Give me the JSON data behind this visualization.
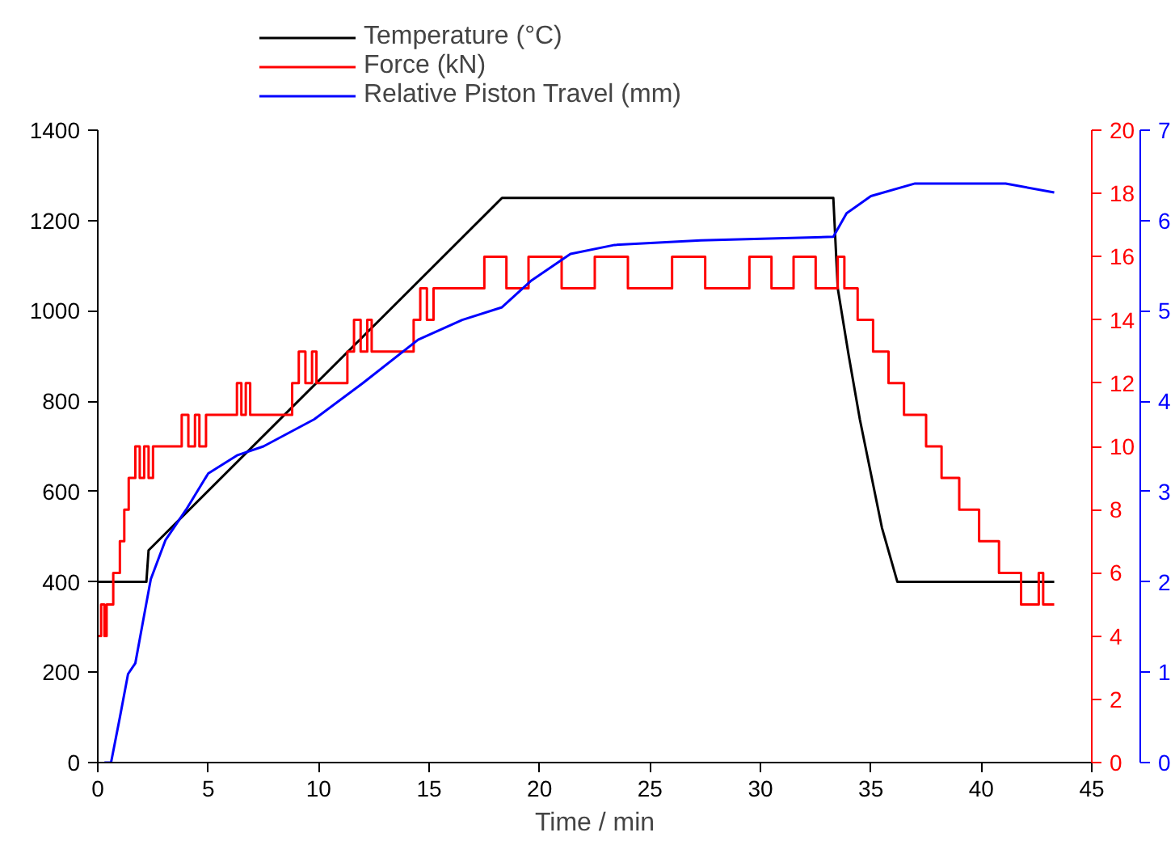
{
  "chart_data": {
    "type": "line",
    "xlabel": "Time / min",
    "xlim": [
      0,
      45
    ],
    "xticks": [
      0,
      5,
      10,
      15,
      20,
      25,
      30,
      35,
      40,
      45
    ],
    "ylim": [
      0,
      1400
    ],
    "yticks": [
      0,
      200,
      400,
      600,
      800,
      1000,
      1200,
      1400
    ],
    "y2lim": [
      0,
      20
    ],
    "y2ticks": [
      0,
      2,
      4,
      6,
      8,
      10,
      12,
      14,
      16,
      18,
      20
    ],
    "y3lim": [
      0,
      7
    ],
    "y3ticks": [
      0,
      1,
      2,
      3,
      4,
      5,
      6,
      7
    ],
    "legend": "top left",
    "grid": false,
    "series": [
      {
        "name": "Temperature (°C)",
        "color": "#000000",
        "type": "line",
        "x": [
          0,
          2.2,
          2.3,
          18.3,
          33.3,
          33.5,
          34,
          34.5,
          35,
          35.5,
          36.2,
          43.3
        ],
        "values": [
          400,
          400,
          470,
          1250,
          1250,
          1050,
          900,
          760,
          640,
          520,
          400,
          400
        ]
      },
      {
        "name": "Force (kN)",
        "color": "#ff0000",
        "type": "step",
        "axis": "y2",
        "x": [
          0,
          0.15,
          0.3,
          0.4,
          0.7,
          1.0,
          1.2,
          1.4,
          1.7,
          1.9,
          2.1,
          2.3,
          2.5,
          3.8,
          4.1,
          4.4,
          4.6,
          4.9,
          6.3,
          6.5,
          6.7,
          6.9,
          8.8,
          9.1,
          9.4,
          9.7,
          9.9,
          11.3,
          11.6,
          11.9,
          12.2,
          12.4,
          14.3,
          14.6,
          14.9,
          15.2,
          16.8,
          17.5,
          18.5,
          19.5,
          21,
          22.5,
          24,
          26,
          27.5,
          29.5,
          30.5,
          31.5,
          32.5,
          33.5,
          33.8,
          34.4,
          35.1,
          35.8,
          36.5,
          37.5,
          38.2,
          39.0,
          39.9,
          40.8,
          41.8,
          42.6,
          42.8,
          43.3
        ],
        "values": [
          4,
          5,
          4,
          5,
          6,
          7,
          8,
          9,
          10,
          9,
          10,
          9,
          10,
          11,
          10,
          11,
          10,
          11,
          12,
          11,
          12,
          11,
          12,
          13,
          12,
          13,
          12,
          13,
          14,
          13,
          14,
          13,
          14,
          15,
          14,
          15,
          15,
          16,
          15,
          16,
          15,
          16,
          15,
          16,
          15,
          16,
          15,
          16,
          15,
          16,
          15,
          14,
          13,
          12,
          11,
          10,
          9,
          8,
          7,
          6,
          5,
          6,
          5,
          5
        ]
      },
      {
        "name": "Relative Piston Travel (mm)",
        "color": "#0000ff",
        "type": "line",
        "axis": "y3",
        "x": [
          0.3,
          0.6,
          1.0,
          1.37,
          1.7,
          2.0,
          2.4,
          3.06,
          4,
          5,
          6.3,
          7.5,
          9.8,
          12,
          14.5,
          16.5,
          18.3,
          19.6,
          21.4,
          23.4,
          27.3,
          33.3,
          33.9,
          35,
          37,
          41.1,
          43.3
        ],
        "values": [
          0,
          0,
          0.5,
          0.98,
          1.1,
          1.5,
          2.03,
          2.46,
          2.8,
          3.2,
          3.4,
          3.5,
          3.8,
          4.2,
          4.68,
          4.9,
          5.04,
          5.33,
          5.63,
          5.73,
          5.78,
          5.82,
          6.08,
          6.27,
          6.41,
          6.41,
          6.31
        ]
      }
    ]
  }
}
